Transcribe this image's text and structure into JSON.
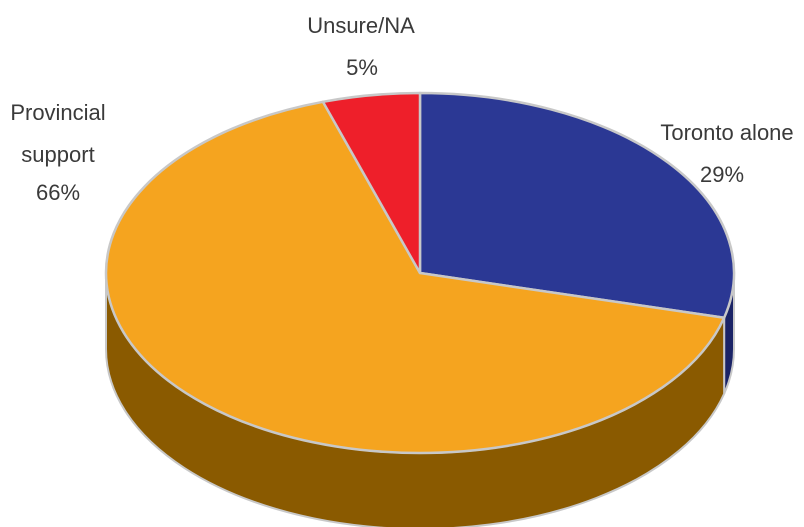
{
  "chart_data": {
    "type": "pie",
    "style": "3d",
    "title": "",
    "slices": [
      {
        "label_lines": [
          "Toronto alone"
        ],
        "value": 29,
        "value_label": "29%",
        "color": "#2b3894",
        "side_color": "#1a2366"
      },
      {
        "label_lines": [
          "Provincial",
          "support"
        ],
        "value": 66,
        "value_label": "66%",
        "color": "#f5a41f",
        "side_color": "#8a5a00"
      },
      {
        "label_lines": [
          "Unsure/NA"
        ],
        "value": 5,
        "value_label": "5%",
        "color": "#ee1f2a",
        "side_color": "#8f1218"
      }
    ],
    "edge_color": "#c8c8c8",
    "legend": "none"
  }
}
